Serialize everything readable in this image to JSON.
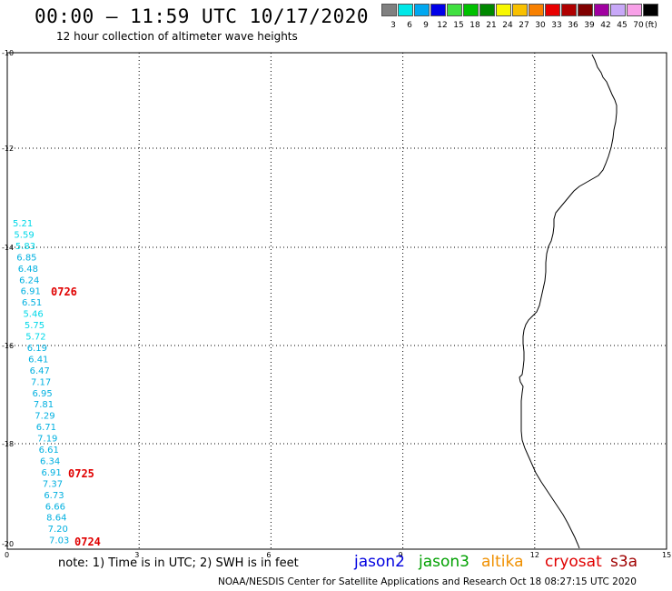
{
  "header": {
    "title": "00:00 – 11:59 UTC 10/17/2020",
    "subtitle": "12 hour collection of altimeter wave heights"
  },
  "color_scale": {
    "unit": "(ft)",
    "bins": [
      {
        "label": "3",
        "color": "#808080"
      },
      {
        "label": "6",
        "color": "#00e8e8"
      },
      {
        "label": "9",
        "color": "#00a8f0"
      },
      {
        "label": "12",
        "color": "#0000e8"
      },
      {
        "label": "15",
        "color": "#40e040"
      },
      {
        "label": "18",
        "color": "#00c000"
      },
      {
        "label": "21",
        "color": "#008800"
      },
      {
        "label": "24",
        "color": "#f8f800"
      },
      {
        "label": "27",
        "color": "#f8c000"
      },
      {
        "label": "30",
        "color": "#f88000"
      },
      {
        "label": "33",
        "color": "#e80000"
      },
      {
        "label": "36",
        "color": "#b00000"
      },
      {
        "label": "39",
        "color": "#800000"
      },
      {
        "label": "42",
        "color": "#a000a0"
      },
      {
        "label": "45",
        "color": "#c8a8f8"
      },
      {
        "label": "70",
        "color": "#f8a0e8"
      },
      {
        "label": "",
        "color": "#000000"
      }
    ]
  },
  "axes": {
    "x_ticks": [
      "0",
      "3",
      "6",
      "9",
      "12",
      "15"
    ],
    "y_ticks": [
      "-10",
      "-12",
      "-14",
      "-16",
      "-18",
      "-20"
    ]
  },
  "observations": [
    {
      "label": "5.21",
      "color": "#00d8e8"
    },
    {
      "label": "5.59",
      "color": "#00d8e8"
    },
    {
      "label": "5.83",
      "color": "#00d8e8"
    },
    {
      "label": "6.85",
      "color": "#00b0e0"
    },
    {
      "label": "6.48",
      "color": "#00b0e0"
    },
    {
      "label": "6.24",
      "color": "#00b0e0"
    },
    {
      "label": "6.91",
      "color": "#00b0e0"
    },
    {
      "label": "6.51",
      "color": "#00b0e0"
    },
    {
      "label": "5.46",
      "color": "#00d8e8"
    },
    {
      "label": "5.75",
      "color": "#00d8e8"
    },
    {
      "label": "5.72",
      "color": "#00d8e8"
    },
    {
      "label": "6.19",
      "color": "#00b0e0"
    },
    {
      "label": "6.41",
      "color": "#00b0e0"
    },
    {
      "label": "6.47",
      "color": "#00b0e0"
    },
    {
      "label": "7.17",
      "color": "#00b0e0"
    },
    {
      "label": "6.95",
      "color": "#00b0e0"
    },
    {
      "label": "7.81",
      "color": "#00b0e0"
    },
    {
      "label": "7.29",
      "color": "#00b0e0"
    },
    {
      "label": "6.71",
      "color": "#00b0e0"
    },
    {
      "label": "7.19",
      "color": "#00b0e0"
    },
    {
      "label": "6.61",
      "color": "#00b0e0"
    },
    {
      "label": "6.34",
      "color": "#00b0e0"
    },
    {
      "label": "6.91",
      "color": "#00b0e0"
    },
    {
      "label": "7.37",
      "color": "#00b0e0"
    },
    {
      "label": "6.73",
      "color": "#00b0e0"
    },
    {
      "label": "6.66",
      "color": "#00b0e0"
    },
    {
      "label": "8.64",
      "color": "#00b0e0"
    },
    {
      "label": "7.20",
      "color": "#00b0e0"
    },
    {
      "label": "7.03",
      "color": "#00b0e0"
    }
  ],
  "time_labels": [
    {
      "label": "0726",
      "color": "#e00000"
    },
    {
      "label": "0725",
      "color": "#e00000"
    },
    {
      "label": "0724",
      "color": "#e00000"
    }
  ],
  "footer": {
    "note": "note: 1) Time is in UTC; 2) SWH is in feet",
    "satellites": [
      {
        "name": "jason2",
        "color": "#0000e0"
      },
      {
        "name": "jason3",
        "color": "#00a000"
      },
      {
        "name": "altika",
        "color": "#f09000"
      },
      {
        "name": "cryosat",
        "color": "#e00000"
      },
      {
        "name": "s3a",
        "color": "#a00000"
      }
    ],
    "credit": "NOAA/NESDIS Center for Satellite Applications and Research    Oct 18 08:27:15 UTC 2020"
  }
}
